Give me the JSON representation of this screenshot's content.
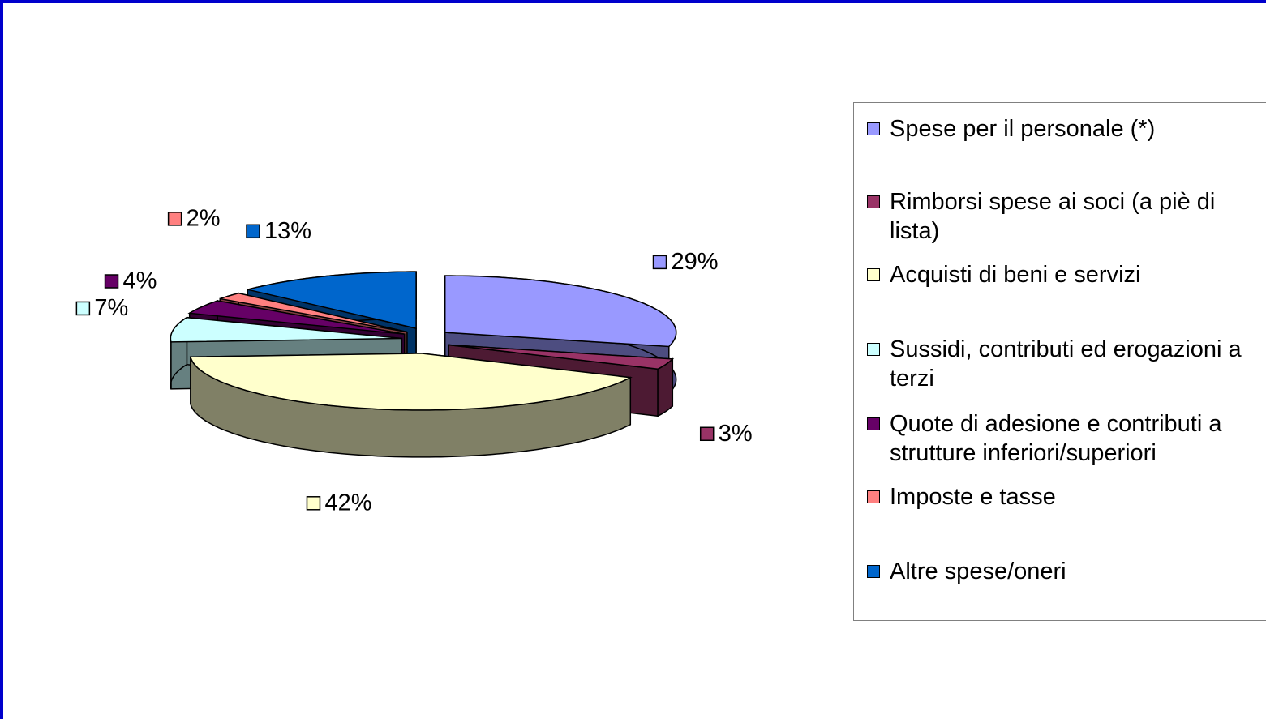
{
  "chart_data": {
    "type": "pie",
    "categories": [
      "Spese per il personale (*)",
      "Rimborsi spese ai soci (a piè di lista)",
      "Acquisti di beni e servizi",
      "Sussidi, contributi ed erogazioni a terzi",
      "Quote di adesione e contributi a strutture inferiori/superiori",
      "Imposte e tasse",
      "Altre spese/oneri"
    ],
    "values": [
      29,
      3,
      42,
      7,
      4,
      2,
      13
    ],
    "value_labels": [
      "29%",
      "3%",
      "42%",
      "7%",
      "4%",
      "2%",
      "13%"
    ],
    "colors": [
      "#9999ff",
      "#993366",
      "#ffffcc",
      "#ccffff",
      "#660066",
      "#ff8080",
      "#0066cc"
    ],
    "legend": "right"
  }
}
